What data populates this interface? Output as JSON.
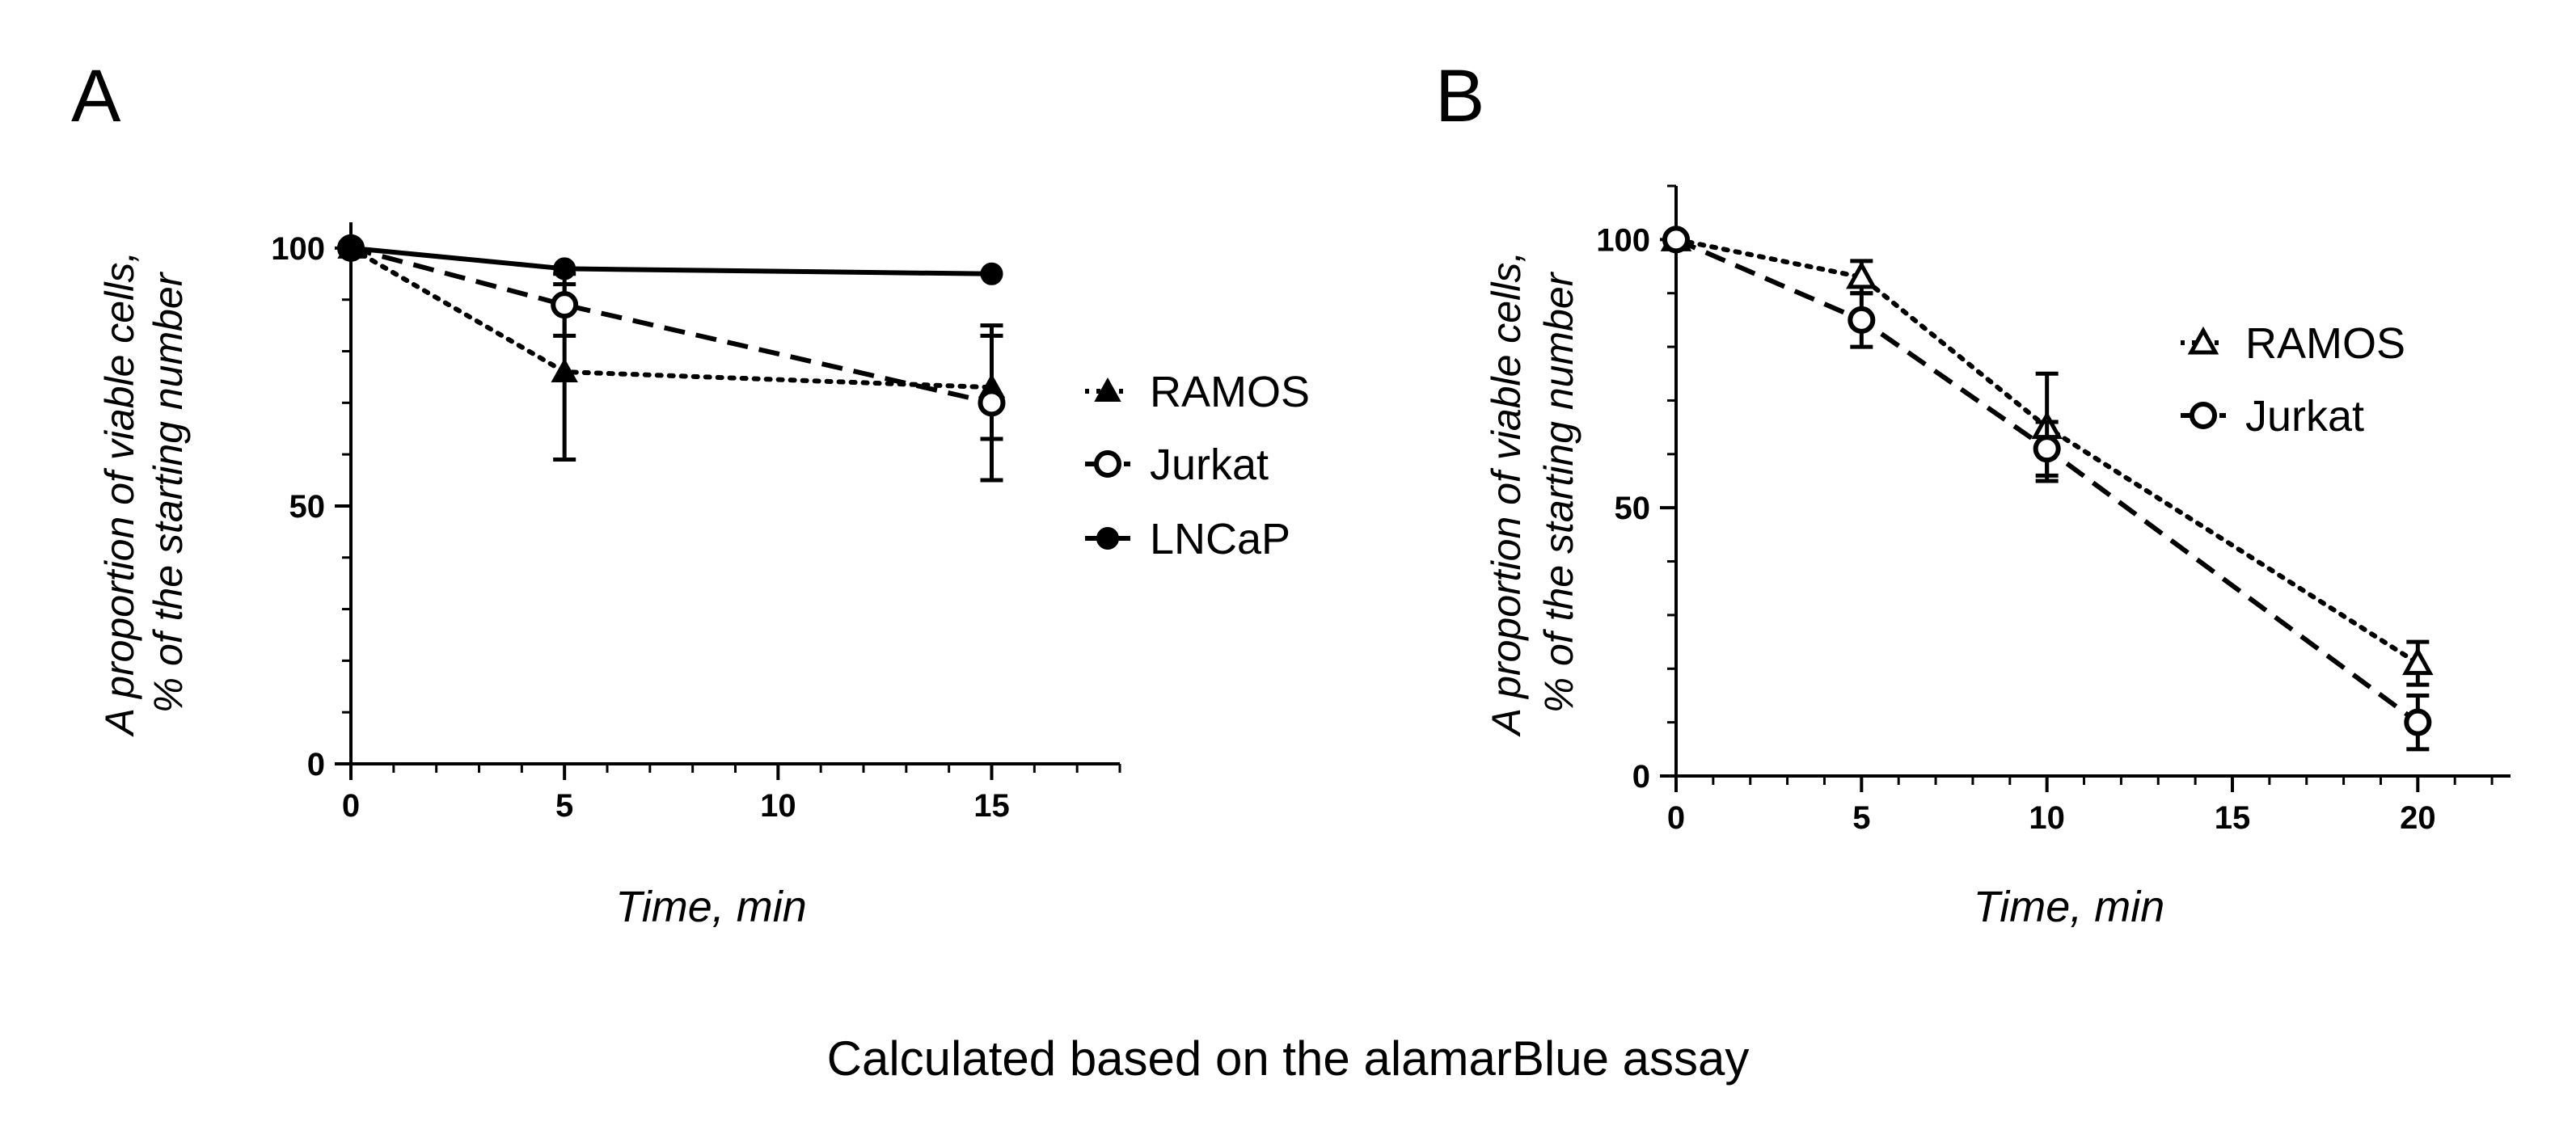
{
  "chart_data": [
    {
      "type": "line",
      "panel": "A",
      "xlabel": "Time, min",
      "ylabel_lines": [
        "A proportion of viable cells,",
        "% of the starting number"
      ],
      "xlim": [
        0,
        18
      ],
      "ylim": [
        0,
        105
      ],
      "xticks": [
        0,
        5,
        10,
        15
      ],
      "yticks": [
        0,
        50,
        100
      ],
      "legend_position": "right",
      "grid": false,
      "series": [
        {
          "name": "RAMOS",
          "marker": "triangle-filled",
          "style": "dotted",
          "x": [
            0,
            5,
            15
          ],
          "y": [
            100,
            76,
            73
          ],
          "err": [
            0,
            17,
            10
          ]
        },
        {
          "name": "Jurkat",
          "marker": "circle-open",
          "style": "dashed",
          "x": [
            0,
            5,
            15
          ],
          "y": [
            100,
            89,
            70
          ],
          "err": [
            0,
            6,
            15
          ]
        },
        {
          "name": "LNCaP",
          "marker": "circle-filled",
          "style": "solid",
          "x": [
            0,
            5,
            15
          ],
          "y": [
            100,
            96,
            95
          ],
          "err": [
            0,
            0,
            0
          ]
        }
      ]
    },
    {
      "type": "line",
      "panel": "B",
      "xlabel": "Time, min",
      "ylabel_lines": [
        "A proportion of viable cells,",
        "% of the starting number"
      ],
      "xlim": [
        0,
        22.5
      ],
      "ylim": [
        0,
        110
      ],
      "xticks": [
        0,
        5,
        10,
        15,
        20
      ],
      "yticks": [
        0,
        50,
        100
      ],
      "legend_position": "right",
      "grid": false,
      "series": [
        {
          "name": "RAMOS",
          "marker": "triangle-open",
          "style": "dotted",
          "x": [
            0,
            5,
            10,
            20
          ],
          "y": [
            100,
            93,
            65,
            21
          ],
          "err": [
            0,
            3,
            10,
            4
          ]
        },
        {
          "name": "Jurkat",
          "marker": "circle-open",
          "style": "dashed",
          "x": [
            0,
            5,
            10,
            20
          ],
          "y": [
            100,
            85,
            61,
            10
          ],
          "err": [
            0,
            5,
            5,
            5
          ]
        }
      ]
    }
  ],
  "caption": "Calculated based on the alamarBlue assay"
}
